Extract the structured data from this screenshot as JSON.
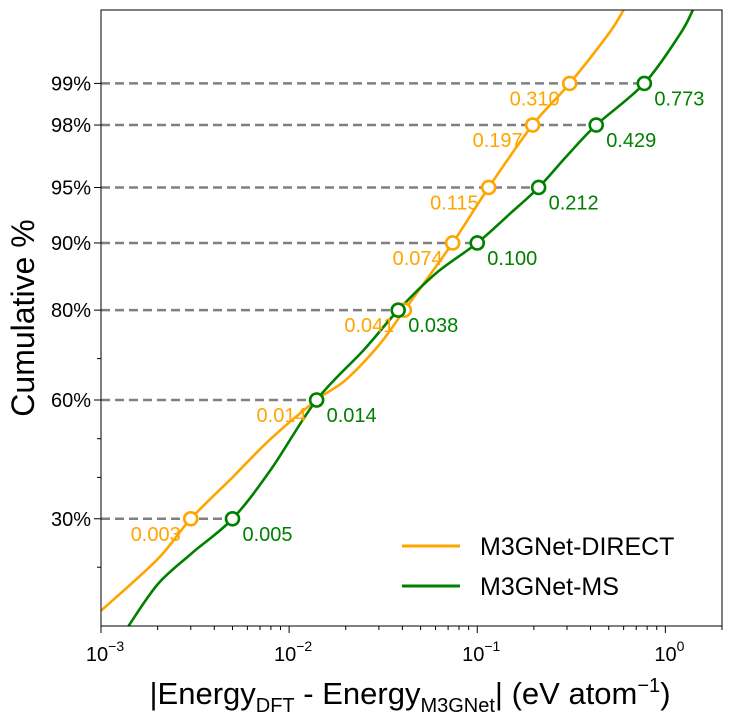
{
  "chart_data": {
    "type": "line",
    "title": "",
    "xlabel_parts": {
      "bar_left": "|",
      "term1": "Energy",
      "sub1": "DFT",
      "minus": " - ",
      "term2": "Energy",
      "sub2": "M3GNet",
      "bar_right": "|",
      "unit_open": " (eV atom",
      "unit_exp": "−1",
      "unit_close": ")"
    },
    "ylabel": "Cumulative %",
    "x_scale": "log",
    "xlim": [
      0.001,
      2.0
    ],
    "x_ticks": [
      {
        "value": 0.001,
        "base": "10",
        "exp": "−3"
      },
      {
        "value": 0.01,
        "base": "10",
        "exp": "−2"
      },
      {
        "value": 0.1,
        "base": "10",
        "exp": "−1"
      },
      {
        "value": 1,
        "base": "10",
        "exp": "0"
      }
    ],
    "y_scale": "normal-probability",
    "ylim_percent": [
      11,
      99.75
    ],
    "y_ticks": [
      {
        "value": 30,
        "label": "30%"
      },
      {
        "value": 60,
        "label": "60%"
      },
      {
        "value": 80,
        "label": "80%"
      },
      {
        "value": 90,
        "label": "90%"
      },
      {
        "value": 95,
        "label": "95%"
      },
      {
        "value": 98,
        "label": "98%"
      },
      {
        "value": 99,
        "label": "99%"
      }
    ],
    "reference_lines_percent": [
      30,
      60,
      80,
      90,
      95,
      98,
      99
    ],
    "series": [
      {
        "name": "M3GNet-DIRECT",
        "color": "#FFA500",
        "curve": [
          [
            0.001,
            13
          ],
          [
            0.002,
            21.5
          ],
          [
            0.003,
            30
          ],
          [
            0.005,
            40
          ],
          [
            0.008,
            50
          ],
          [
            0.014,
            60
          ],
          [
            0.02,
            65
          ],
          [
            0.03,
            73
          ],
          [
            0.041,
            80
          ],
          [
            0.074,
            90
          ],
          [
            0.115,
            95
          ],
          [
            0.197,
            98
          ],
          [
            0.31,
            99
          ],
          [
            0.5,
            99.6
          ],
          [
            0.6,
            99.75
          ]
        ],
        "markers": [
          {
            "percent": 30,
            "x": 0.003,
            "label": "0.003"
          },
          {
            "percent": 60,
            "x": 0.014,
            "label": "0.014"
          },
          {
            "percent": 80,
            "x": 0.041,
            "label": "0.041"
          },
          {
            "percent": 90,
            "x": 0.074,
            "label": "0.074"
          },
          {
            "percent": 95,
            "x": 0.115,
            "label": "0.115"
          },
          {
            "percent": 98,
            "x": 0.197,
            "label": "0.197"
          },
          {
            "percent": 99,
            "x": 0.31,
            "label": "0.310"
          }
        ]
      },
      {
        "name": "M3GNet-MS",
        "color": "#008000",
        "curve": [
          [
            0.0014,
            11
          ],
          [
            0.002,
            17
          ],
          [
            0.003,
            22.5
          ],
          [
            0.005,
            30
          ],
          [
            0.008,
            42
          ],
          [
            0.014,
            60
          ],
          [
            0.025,
            72
          ],
          [
            0.038,
            80
          ],
          [
            0.06,
            86
          ],
          [
            0.1,
            90
          ],
          [
            0.15,
            93
          ],
          [
            0.212,
            95
          ],
          [
            0.3,
            96.8
          ],
          [
            0.429,
            98
          ],
          [
            0.773,
            99
          ],
          [
            1.2,
            99.6
          ],
          [
            1.4,
            99.75
          ]
        ],
        "markers": [
          {
            "percent": 30,
            "x": 0.005,
            "label": "0.005"
          },
          {
            "percent": 60,
            "x": 0.014,
            "label": "0.014"
          },
          {
            "percent": 80,
            "x": 0.038,
            "label": "0.038"
          },
          {
            "percent": 90,
            "x": 0.1,
            "label": "0.100"
          },
          {
            "percent": 95,
            "x": 0.212,
            "label": "0.212"
          },
          {
            "percent": 98,
            "x": 0.429,
            "label": "0.429"
          },
          {
            "percent": 99,
            "x": 0.773,
            "label": "0.773"
          }
        ]
      }
    ],
    "legend": {
      "position": "bottom-right",
      "entries": [
        "M3GNet-DIRECT",
        "M3GNet-MS"
      ]
    },
    "colors": {
      "reference_line": "#808080",
      "axis": "#000000",
      "marker_fill": "#ffffff"
    }
  }
}
